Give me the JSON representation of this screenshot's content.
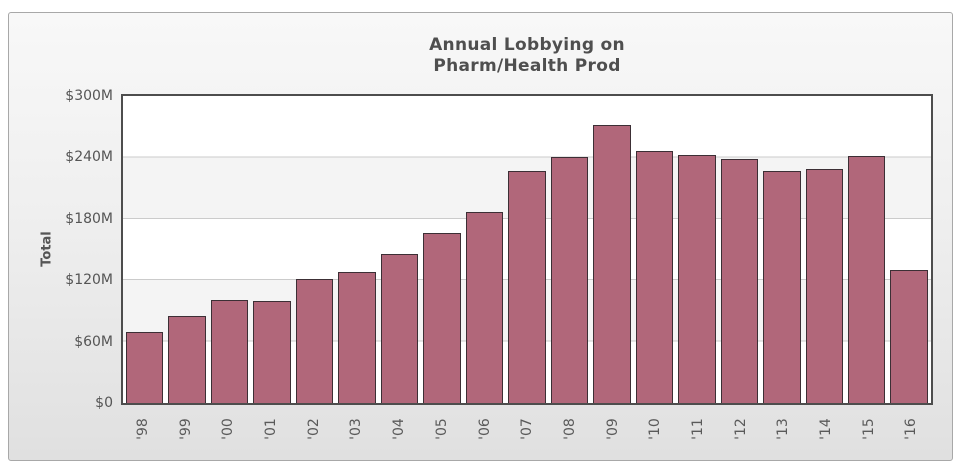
{
  "chart": {
    "title_line1": "Annual Lobbying on",
    "title_line2": "Pharm/Health Prod",
    "y_axis_title": "Total"
  },
  "chart_data": {
    "type": "bar",
    "title": "Annual Lobbying on Pharm/Health Prod",
    "xlabel": "",
    "ylabel": "Total",
    "categories": [
      "'98",
      "'99",
      "'00",
      "'01",
      "'02",
      "'03",
      "'04",
      "'05",
      "'06",
      "'07",
      "'08",
      "'09",
      "'10",
      "'11",
      "'12",
      "'13",
      "'14",
      "'15",
      "'16"
    ],
    "values": [
      69,
      85,
      101,
      100,
      121,
      128,
      146,
      166,
      187,
      227,
      240,
      272,
      246,
      242,
      238,
      227,
      229,
      241,
      130
    ],
    "values_unit": "USD millions",
    "ylim": [
      0,
      300
    ],
    "y_ticks": [
      {
        "label": "$300M",
        "value": 300
      },
      {
        "label": "$240M",
        "value": 240
      },
      {
        "label": "$180M",
        "value": 180
      },
      {
        "label": "$120M",
        "value": 120
      },
      {
        "label": "$60M",
        "value": 60
      },
      {
        "label": "$0",
        "value": 0
      }
    ],
    "grid": true,
    "legend_position": "none",
    "colors": {
      "bar_fill": "#b1677a",
      "bar_border": "#3c2f35",
      "plot_border": "#4d4d4d",
      "gridline": "#cbcbcb",
      "band_light": "#ffffff",
      "band_shaded": "#f4f4f4",
      "text": "#555555",
      "panel_background_top": "#f8f8f8",
      "panel_background_bottom": "#e0e0e0",
      "panel_border": "#a8a8a8"
    }
  }
}
